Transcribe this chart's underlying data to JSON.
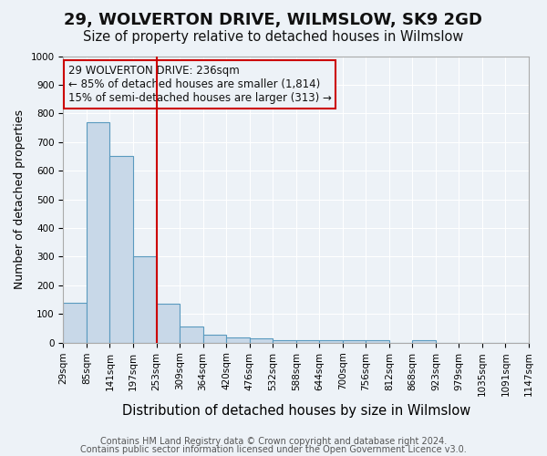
{
  "title1": "29, WOLVERTON DRIVE, WILMSLOW, SK9 2GD",
  "title2": "Size of property relative to detached houses in Wilmslow",
  "xlabel": "Distribution of detached houses by size in Wilmslow",
  "ylabel": "Number of detached properties",
  "bin_labels": [
    "29sqm",
    "85sqm",
    "141sqm",
    "197sqm",
    "253sqm",
    "309sqm",
    "364sqm",
    "420sqm",
    "476sqm",
    "532sqm",
    "588sqm",
    "644sqm",
    "700sqm",
    "756sqm",
    "812sqm",
    "868sqm",
    "923sqm",
    "979sqm",
    "1035sqm",
    "1091sqm",
    "1147sqm"
  ],
  "bar_heights": [
    140,
    770,
    650,
    300,
    135,
    55,
    28,
    18,
    15,
    10,
    8,
    10,
    8,
    8,
    0,
    10,
    0,
    0,
    0,
    0
  ],
  "bar_color": "#c8d8e8",
  "bar_edge_color": "#5a9abf",
  "property_line_x": 4,
  "property_line_color": "#cc0000",
  "ylim": [
    0,
    1000
  ],
  "yticks": [
    0,
    100,
    200,
    300,
    400,
    500,
    600,
    700,
    800,
    900,
    1000
  ],
  "annotation_text": "29 WOLVERTON DRIVE: 236sqm\n← 85% of detached houses are smaller (1,814)\n15% of semi-detached houses are larger (313) →",
  "annotation_box_color": "#cc0000",
  "footnote1": "Contains HM Land Registry data © Crown copyright and database right 2024.",
  "footnote2": "Contains public sector information licensed under the Open Government Licence v3.0.",
  "background_color": "#edf2f7",
  "grid_color": "#ffffff",
  "title1_fontsize": 13,
  "title2_fontsize": 10.5,
  "xlabel_fontsize": 10.5,
  "ylabel_fontsize": 9,
  "tick_fontsize": 7.5,
  "annotation_fontsize": 8.5,
  "footnote_fontsize": 7
}
